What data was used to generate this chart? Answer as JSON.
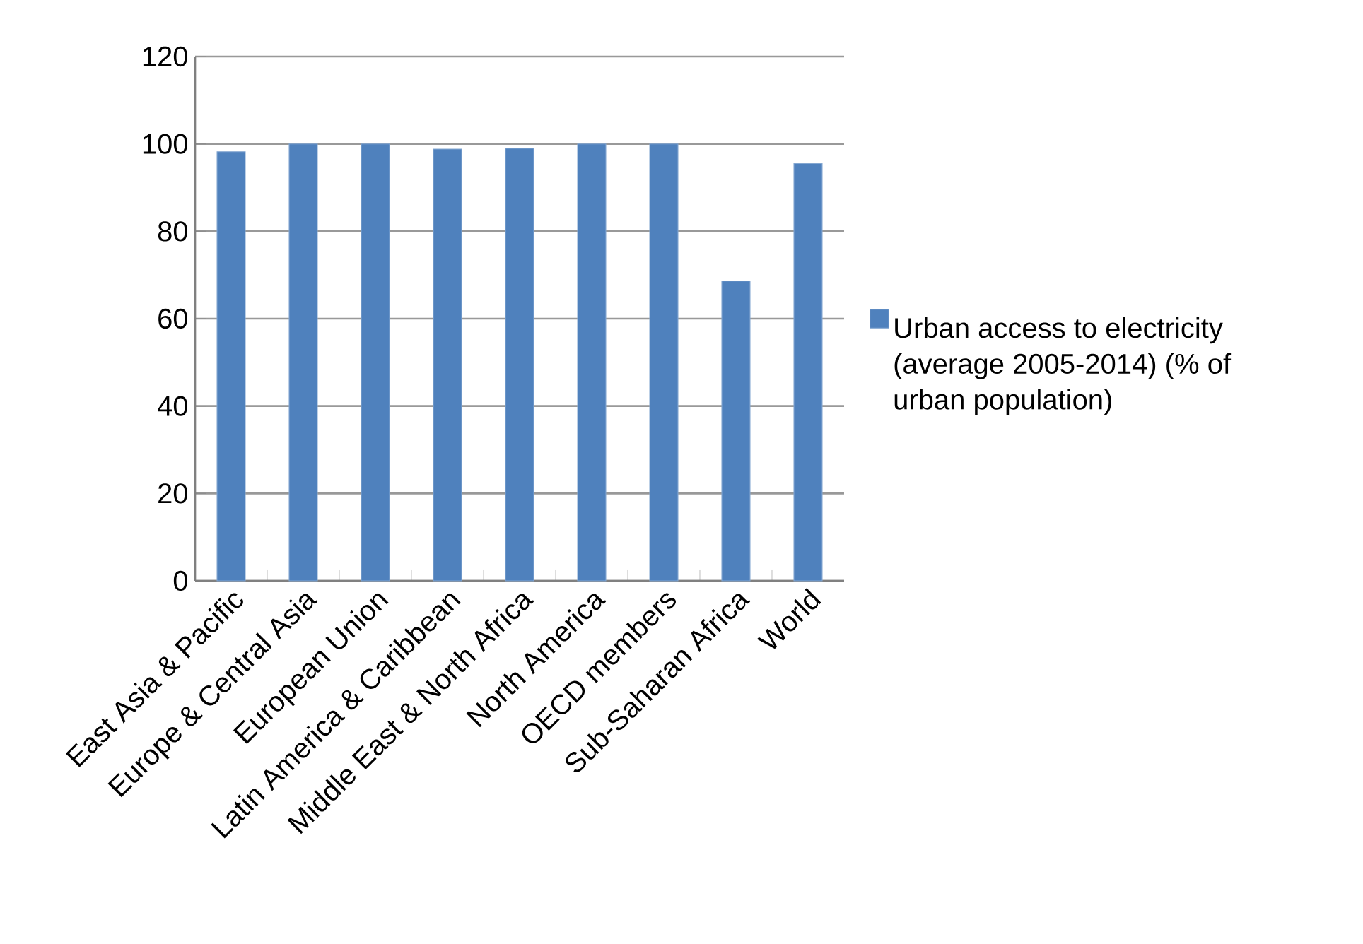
{
  "chart_data": {
    "type": "bar",
    "categories": [
      "East Asia & Pacific",
      "Europe & Central Asia",
      "European Union",
      "Latin America & Caribbean",
      "Middle East & North Africa",
      "North America",
      "OECD members",
      "Sub-Saharan Africa",
      "World"
    ],
    "series": [
      {
        "name": "Urban access to electricity (average 2005-2014) (% of urban population)",
        "color": "#4f81bd",
        "values": [
          98.2,
          100,
          100,
          98.8,
          99.0,
          100,
          100,
          68.6,
          95.5
        ]
      }
    ],
    "ylim": [
      0,
      120
    ],
    "yticks": [
      0,
      20,
      40,
      60,
      80,
      100,
      120
    ],
    "grid": "y",
    "legend": "right"
  }
}
